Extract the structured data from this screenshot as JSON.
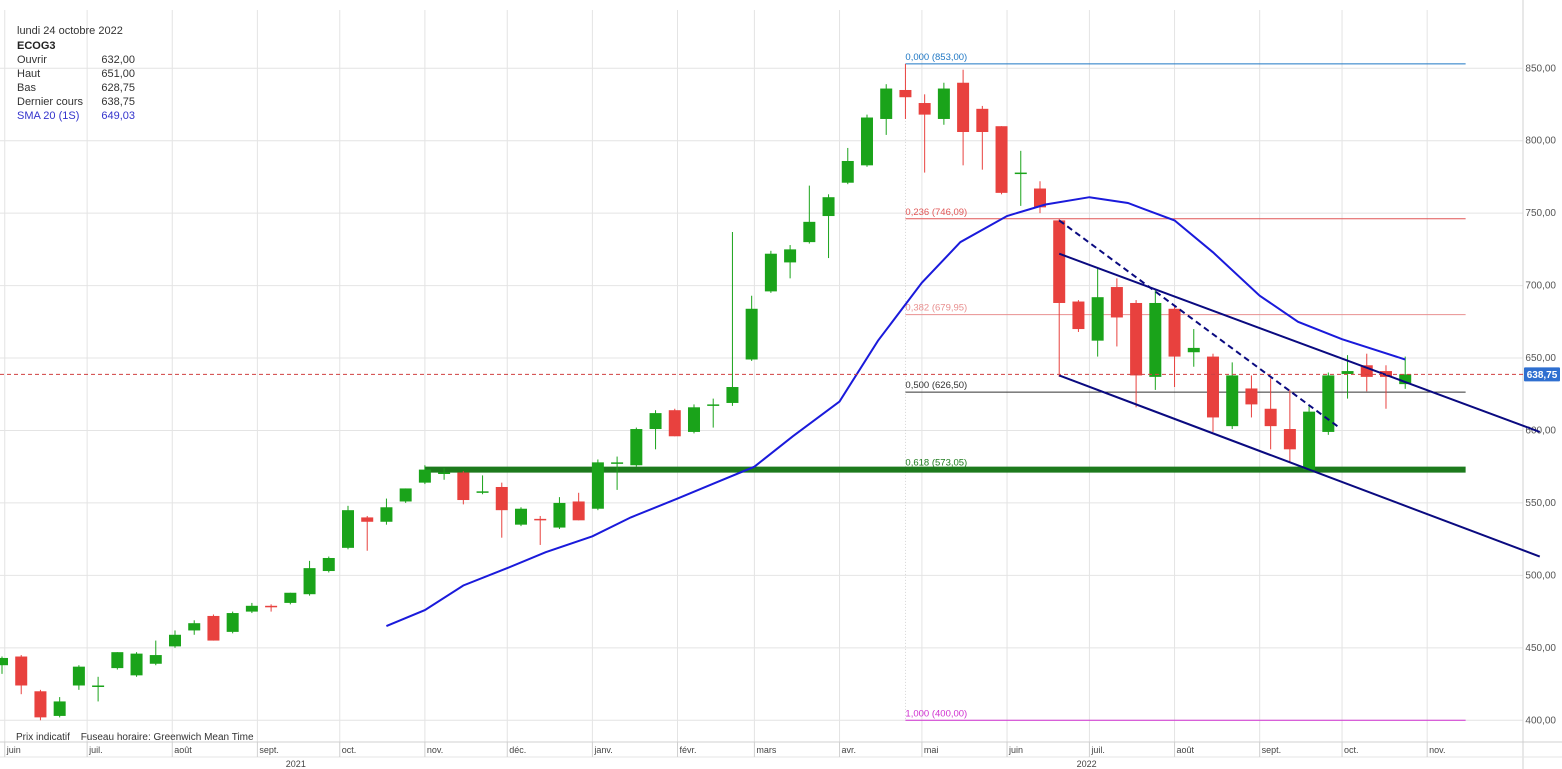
{
  "header": {
    "date": "lundi 24 octobre 2022",
    "ticker": "ECOG3",
    "quote": [
      {
        "label": "Ouvrir",
        "value": "632,00"
      },
      {
        "label": "Haut",
        "value": "651,00"
      },
      {
        "label": "Bas",
        "value": "628,75"
      },
      {
        "label": "Dernier cours",
        "value": "638,75"
      }
    ],
    "sma": {
      "label": "SMA 20 (1S)",
      "value": "649,03"
    }
  },
  "footer": {
    "price_note": "Prix indicatif",
    "timezone": "Fuseau horaire: Greenwich Mean Time"
  },
  "colors": {
    "up": "#1aa31a",
    "down": "#e8413e",
    "sma": "#1a1adb",
    "trend": "#0a0a80",
    "support": "#1d7a1d",
    "last_price": "#d04040",
    "last_price_tag": "#2f6fd0"
  },
  "chart_data": {
    "type": "candlestick",
    "interval": "weekly",
    "ylim": [
      385,
      870
    ],
    "y_ticks": [
      "850,00",
      "800,00",
      "750,00",
      "700,00",
      "650,00",
      "600,00",
      "550,00",
      "500,00",
      "450,00",
      "400,00"
    ],
    "y_tick_values": [
      850,
      800,
      750,
      700,
      650,
      600,
      550,
      500,
      450,
      400
    ],
    "x_month_labels": [
      {
        "label": "juin",
        "date": "2021-06-01"
      },
      {
        "label": "juil.",
        "date": "2021-07-01"
      },
      {
        "label": "août",
        "date": "2021-08-01"
      },
      {
        "label": "sept.",
        "date": "2021-09-01"
      },
      {
        "label": "oct.",
        "date": "2021-10-01"
      },
      {
        "label": "nov.",
        "date": "2021-11-01"
      },
      {
        "label": "déc.",
        "date": "2021-12-01"
      },
      {
        "label": "janv.",
        "date": "2022-01-01"
      },
      {
        "label": "févr.",
        "date": "2022-02-01"
      },
      {
        "label": "mars",
        "date": "2022-03-01"
      },
      {
        "label": "avr.",
        "date": "2022-04-01"
      },
      {
        "label": "mai",
        "date": "2022-05-01"
      },
      {
        "label": "juin",
        "date": "2022-06-01"
      },
      {
        "label": "juil.",
        "date": "2022-07-01"
      },
      {
        "label": "août",
        "date": "2022-08-01"
      },
      {
        "label": "sept.",
        "date": "2022-09-01"
      },
      {
        "label": "oct.",
        "date": "2022-10-01"
      },
      {
        "label": "nov.",
        "date": "2022-11-01"
      }
    ],
    "x_year_labels": [
      {
        "label": "2021",
        "date": "2021-09-15"
      },
      {
        "label": "2022",
        "date": "2022-06-30"
      }
    ],
    "candles": [
      {
        "date": "2021-05-31",
        "o": 438,
        "h": 444,
        "l": 432,
        "c": 443
      },
      {
        "date": "2021-06-07",
        "o": 444,
        "h": 445,
        "l": 418,
        "c": 424
      },
      {
        "date": "2021-06-14",
        "o": 420,
        "h": 421,
        "l": 400,
        "c": 402
      },
      {
        "date": "2021-06-21",
        "o": 403,
        "h": 416,
        "l": 402,
        "c": 413
      },
      {
        "date": "2021-06-28",
        "o": 424,
        "h": 438,
        "l": 421,
        "c": 437
      },
      {
        "date": "2021-07-05",
        "o": 424,
        "h": 430,
        "l": 413,
        "c": 424
      },
      {
        "date": "2021-07-12",
        "o": 436,
        "h": 447,
        "l": 435,
        "c": 447
      },
      {
        "date": "2021-07-19",
        "o": 431,
        "h": 447,
        "l": 430,
        "c": 446
      },
      {
        "date": "2021-07-26",
        "o": 439,
        "h": 455,
        "l": 438,
        "c": 445
      },
      {
        "date": "2021-08-02",
        "o": 451,
        "h": 462,
        "l": 450,
        "c": 459
      },
      {
        "date": "2021-08-09",
        "o": 462,
        "h": 469,
        "l": 459,
        "c": 467
      },
      {
        "date": "2021-08-16",
        "o": 472,
        "h": 473,
        "l": 455,
        "c": 455
      },
      {
        "date": "2021-08-23",
        "o": 461,
        "h": 475,
        "l": 460,
        "c": 474
      },
      {
        "date": "2021-08-30",
        "o": 475,
        "h": 481,
        "l": 474,
        "c": 479
      },
      {
        "date": "2021-09-06",
        "o": 479,
        "h": 480,
        "l": 475,
        "c": 478
      },
      {
        "date": "2021-09-13",
        "o": 481,
        "h": 488,
        "l": 480,
        "c": 488
      },
      {
        "date": "2021-09-20",
        "o": 487,
        "h": 510,
        "l": 486,
        "c": 505
      },
      {
        "date": "2021-09-27",
        "o": 503,
        "h": 513,
        "l": 502,
        "c": 512
      },
      {
        "date": "2021-10-04",
        "o": 519,
        "h": 548,
        "l": 518,
        "c": 545
      },
      {
        "date": "2021-10-11",
        "o": 540,
        "h": 541,
        "l": 517,
        "c": 537
      },
      {
        "date": "2021-10-18",
        "o": 537,
        "h": 553,
        "l": 535,
        "c": 547
      },
      {
        "date": "2021-10-25",
        "o": 551,
        "h": 560,
        "l": 550,
        "c": 560
      },
      {
        "date": "2021-11-01",
        "o": 564,
        "h": 576,
        "l": 563,
        "c": 573
      },
      {
        "date": "2021-11-08",
        "o": 571,
        "h": 574,
        "l": 566,
        "c": 571
      },
      {
        "date": "2021-11-15",
        "o": 571,
        "h": 572,
        "l": 549,
        "c": 552
      },
      {
        "date": "2021-11-22",
        "o": 557,
        "h": 569,
        "l": 556,
        "c": 558
      },
      {
        "date": "2021-11-29",
        "o": 561,
        "h": 564,
        "l": 526,
        "c": 545
      },
      {
        "date": "2021-12-06",
        "o": 535,
        "h": 547,
        "l": 534,
        "c": 546
      },
      {
        "date": "2021-12-13",
        "o": 539,
        "h": 541,
        "l": 521,
        "c": 538
      },
      {
        "date": "2021-12-20",
        "o": 533,
        "h": 554,
        "l": 532,
        "c": 550
      },
      {
        "date": "2021-12-27",
        "o": 551,
        "h": 557,
        "l": 538,
        "c": 538
      },
      {
        "date": "2022-01-03",
        "o": 546,
        "h": 580,
        "l": 545,
        "c": 578
      },
      {
        "date": "2022-01-10",
        "o": 578,
        "h": 582,
        "l": 559,
        "c": 578
      },
      {
        "date": "2022-01-17",
        "o": 576,
        "h": 602,
        "l": 575,
        "c": 601
      },
      {
        "date": "2022-01-24",
        "o": 601,
        "h": 614,
        "l": 587,
        "c": 612
      },
      {
        "date": "2022-01-31",
        "o": 614,
        "h": 615,
        "l": 596,
        "c": 596
      },
      {
        "date": "2022-02-07",
        "o": 599,
        "h": 618,
        "l": 598,
        "c": 616
      },
      {
        "date": "2022-02-14",
        "o": 617,
        "h": 622,
        "l": 602,
        "c": 618
      },
      {
        "date": "2022-02-21",
        "o": 619,
        "h": 737,
        "l": 617,
        "c": 630
      },
      {
        "date": "2022-02-28",
        "o": 649,
        "h": 693,
        "l": 648,
        "c": 684
      },
      {
        "date": "2022-03-07",
        "o": 696,
        "h": 724,
        "l": 695,
        "c": 722
      },
      {
        "date": "2022-03-14",
        "o": 716,
        "h": 728,
        "l": 705,
        "c": 725
      },
      {
        "date": "2022-03-21",
        "o": 730,
        "h": 769,
        "l": 729,
        "c": 744
      },
      {
        "date": "2022-03-28",
        "o": 748,
        "h": 763,
        "l": 719,
        "c": 761
      },
      {
        "date": "2022-04-04",
        "o": 771,
        "h": 795,
        "l": 770,
        "c": 786
      },
      {
        "date": "2022-04-11",
        "o": 783,
        "h": 818,
        "l": 782,
        "c": 816
      },
      {
        "date": "2022-04-18",
        "o": 815,
        "h": 839,
        "l": 804,
        "c": 836
      },
      {
        "date": "2022-04-25",
        "o": 835,
        "h": 853,
        "l": 815,
        "c": 830
      },
      {
        "date": "2022-05-02",
        "o": 826,
        "h": 832,
        "l": 778,
        "c": 818
      },
      {
        "date": "2022-05-09",
        "o": 815,
        "h": 840,
        "l": 811,
        "c": 836
      },
      {
        "date": "2022-05-16",
        "o": 840,
        "h": 849,
        "l": 783,
        "c": 806
      },
      {
        "date": "2022-05-23",
        "o": 822,
        "h": 824,
        "l": 780,
        "c": 806
      },
      {
        "date": "2022-05-30",
        "o": 810,
        "h": 810,
        "l": 763,
        "c": 764
      },
      {
        "date": "2022-06-06",
        "o": 778,
        "h": 793,
        "l": 755,
        "c": 778
      },
      {
        "date": "2022-06-13",
        "o": 767,
        "h": 772,
        "l": 750,
        "c": 754
      },
      {
        "date": "2022-06-20",
        "o": 745,
        "h": 746,
        "l": 637,
        "c": 688
      },
      {
        "date": "2022-06-27",
        "o": 689,
        "h": 690,
        "l": 668,
        "c": 670
      },
      {
        "date": "2022-07-04",
        "o": 662,
        "h": 712,
        "l": 651,
        "c": 692
      },
      {
        "date": "2022-07-11",
        "o": 699,
        "h": 705,
        "l": 658,
        "c": 678
      },
      {
        "date": "2022-07-18",
        "o": 688,
        "h": 690,
        "l": 616,
        "c": 638
      },
      {
        "date": "2022-07-25",
        "o": 637,
        "h": 697,
        "l": 628,
        "c": 688
      },
      {
        "date": "2022-08-01",
        "o": 684,
        "h": 686,
        "l": 630,
        "c": 651
      },
      {
        "date": "2022-08-08",
        "o": 654,
        "h": 670,
        "l": 644,
        "c": 657
      },
      {
        "date": "2022-08-15",
        "o": 651,
        "h": 653,
        "l": 599,
        "c": 609
      },
      {
        "date": "2022-08-22",
        "o": 603,
        "h": 647,
        "l": 601,
        "c": 638
      },
      {
        "date": "2022-08-29",
        "o": 629,
        "h": 638,
        "l": 609,
        "c": 618
      },
      {
        "date": "2022-09-05",
        "o": 615,
        "h": 636,
        "l": 587,
        "c": 603
      },
      {
        "date": "2022-09-12",
        "o": 601,
        "h": 628,
        "l": 578,
        "c": 587
      },
      {
        "date": "2022-09-19",
        "o": 573,
        "h": 617,
        "l": 572,
        "c": 613
      },
      {
        "date": "2022-09-26",
        "o": 599,
        "h": 640,
        "l": 597,
        "c": 638
      },
      {
        "date": "2022-10-03",
        "o": 639,
        "h": 652,
        "l": 622,
        "c": 641
      },
      {
        "date": "2022-10-10",
        "o": 645,
        "h": 653,
        "l": 627,
        "c": 637
      },
      {
        "date": "2022-10-17",
        "o": 641,
        "h": 645,
        "l": 615,
        "c": 637
      },
      {
        "date": "2022-10-24",
        "o": 632,
        "h": 651,
        "l": 628.75,
        "c": 638.75
      }
    ],
    "sma20": [
      {
        "date": "2021-10-18",
        "v": 465
      },
      {
        "date": "2021-11-01",
        "v": 476
      },
      {
        "date": "2021-11-15",
        "v": 493
      },
      {
        "date": "2021-12-01",
        "v": 505
      },
      {
        "date": "2021-12-15",
        "v": 516
      },
      {
        "date": "2022-01-01",
        "v": 527
      },
      {
        "date": "2022-01-15",
        "v": 540
      },
      {
        "date": "2022-02-01",
        "v": 553
      },
      {
        "date": "2022-02-15",
        "v": 564
      },
      {
        "date": "2022-03-01",
        "v": 575
      },
      {
        "date": "2022-03-15",
        "v": 596
      },
      {
        "date": "2022-04-01",
        "v": 620
      },
      {
        "date": "2022-04-15",
        "v": 662
      },
      {
        "date": "2022-05-01",
        "v": 702
      },
      {
        "date": "2022-05-15",
        "v": 730
      },
      {
        "date": "2022-06-01",
        "v": 748
      },
      {
        "date": "2022-06-15",
        "v": 756
      },
      {
        "date": "2022-07-01",
        "v": 761
      },
      {
        "date": "2022-07-15",
        "v": 757
      },
      {
        "date": "2022-08-01",
        "v": 745
      },
      {
        "date": "2022-08-15",
        "v": 723
      },
      {
        "date": "2022-09-01",
        "v": 693
      },
      {
        "date": "2022-09-15",
        "v": 675
      },
      {
        "date": "2022-10-01",
        "v": 663
      },
      {
        "date": "2022-10-24",
        "v": 649
      }
    ],
    "fibonacci": [
      {
        "ratio": "0,000",
        "value": 853.0,
        "label": "0,000 (853,00)",
        "color": "#1f77c4"
      },
      {
        "ratio": "0,236",
        "value": 746.09,
        "label": "0,236 (746,09)",
        "color": "#e15757"
      },
      {
        "ratio": "0,382",
        "value": 679.95,
        "label": "0,382 (679,95)",
        "color": "#e89090"
      },
      {
        "ratio": "0,500",
        "value": 626.5,
        "label": "0,500 (626,50)",
        "color": "#333333"
      },
      {
        "ratio": "0,618",
        "value": 573.05,
        "label": "0,618 (573,05)",
        "color": "#1d7a1d"
      },
      {
        "ratio": "1,000",
        "value": 400.0,
        "label": "1,000 (400,00)",
        "color": "#d030d0"
      }
    ],
    "fib_range": {
      "from": "2022-04-25",
      "to": "2022-11-15"
    },
    "support_line": {
      "from": "2021-11-01",
      "to": "2022-11-15",
      "value": 573
    },
    "trend_lines": [
      {
        "from": {
          "date": "2022-06-20",
          "v": 722
        },
        "to": {
          "date": "2022-12-12",
          "v": 599
        },
        "style": "solid"
      },
      {
        "from": {
          "date": "2022-06-20",
          "v": 638
        },
        "to": {
          "date": "2022-12-12",
          "v": 513
        },
        "style": "solid"
      },
      {
        "from": {
          "date": "2022-06-20",
          "v": 745
        },
        "to": {
          "date": "2022-09-30",
          "v": 602
        },
        "style": "dashed"
      }
    ],
    "last_price": {
      "value": 638.75,
      "label": "638,75"
    }
  }
}
